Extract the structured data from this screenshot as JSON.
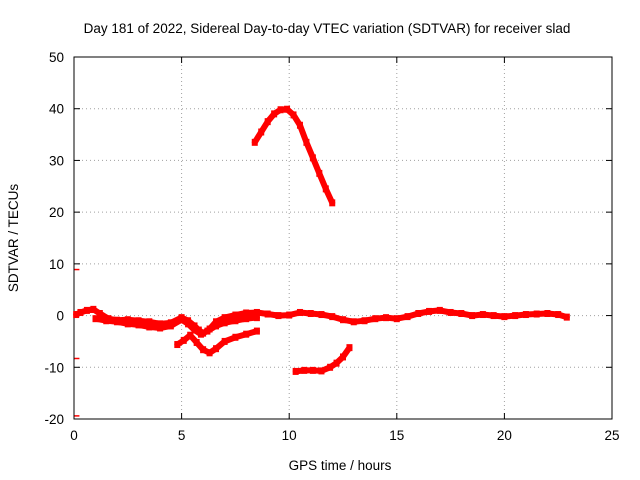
{
  "chart_data": {
    "type": "scatter",
    "title": "Day 181 of 2022, Sidereal Day-to-day VTEC variation (SDTVAR) for receiver slad",
    "xlabel": "GPS time / hours",
    "ylabel": "SDTVAR / TECUs",
    "xlim": [
      0,
      25
    ],
    "ylim": [
      -20,
      50
    ],
    "xticks": [
      0,
      5,
      10,
      15,
      20,
      25
    ],
    "yticks": [
      -20,
      -10,
      0,
      10,
      20,
      30,
      40,
      50
    ],
    "grid": true,
    "legend": "none",
    "series_color": "#ff0000",
    "series": [
      {
        "name": "main band",
        "x": [
          0.1,
          0.3,
          0.6,
          0.9,
          1.2,
          1.6,
          2.0,
          2.5,
          3.0,
          3.5,
          4.0,
          4.5,
          5.0,
          5.3,
          5.6,
          5.8,
          6.0,
          6.3,
          6.6,
          7.0,
          7.5,
          8.0,
          8.5,
          9.0,
          9.5,
          10.0,
          10.5,
          11.0,
          11.5,
          12.0,
          12.5,
          13.0,
          13.5,
          14.0,
          14.5,
          15.0,
          15.5,
          16.0,
          16.5,
          17.0,
          17.5,
          18.0,
          18.5,
          19.0,
          19.5,
          20.0,
          20.5,
          21.0,
          21.5,
          22.0,
          22.5,
          22.9
        ],
        "y": [
          0.2,
          0.6,
          1.0,
          1.2,
          0.4,
          -0.6,
          -0.9,
          -0.8,
          -1.0,
          -1.2,
          -1.6,
          -1.4,
          -0.4,
          -1.0,
          -2.0,
          -2.8,
          -3.4,
          -2.6,
          -1.2,
          -0.4,
          0.1,
          0.5,
          0.6,
          0.3,
          0.0,
          0.1,
          0.6,
          0.4,
          0.2,
          -0.2,
          -0.8,
          -1.2,
          -1.0,
          -0.6,
          -0.4,
          -0.6,
          -0.2,
          0.4,
          0.8,
          1.0,
          0.6,
          0.4,
          0.0,
          0.2,
          0.0,
          -0.2,
          0.0,
          0.2,
          0.3,
          0.4,
          0.2,
          -0.3
        ]
      },
      {
        "name": "lower band",
        "x": [
          1.0,
          1.5,
          2.0,
          2.5,
          3.0,
          3.5,
          4.0,
          4.5,
          5.0,
          5.3,
          5.6,
          5.9,
          6.2,
          6.6,
          7.0,
          7.5,
          8.0,
          8.5
        ],
        "y": [
          -0.6,
          -1.0,
          -1.2,
          -1.6,
          -1.8,
          -2.2,
          -2.4,
          -2.0,
          -0.8,
          -1.6,
          -2.8,
          -3.6,
          -3.0,
          -2.0,
          -1.4,
          -1.0,
          -0.6,
          -0.4
        ]
      },
      {
        "name": "dip segment",
        "x": [
          4.8,
          5.1,
          5.4,
          5.7,
          6.0,
          6.3,
          6.6,
          7.0,
          7.5,
          8.0,
          8.5
        ],
        "y": [
          -5.6,
          -4.8,
          -3.8,
          -5.2,
          -6.6,
          -7.2,
          -6.4,
          -5.0,
          -4.2,
          -3.6,
          -3.0
        ]
      },
      {
        "name": "arc",
        "x": [
          8.4,
          8.7,
          9.0,
          9.3,
          9.6,
          9.9,
          10.2,
          10.5,
          10.8,
          11.1,
          11.4,
          11.7,
          12.0
        ],
        "y": [
          33.5,
          35.5,
          37.5,
          39.0,
          39.8,
          39.9,
          38.8,
          36.8,
          33.5,
          30.5,
          27.5,
          24.5,
          21.8
        ]
      },
      {
        "name": "lower arc",
        "x": [
          10.3,
          10.7,
          11.1,
          11.5,
          11.9,
          12.2,
          12.5,
          12.8
        ],
        "y": [
          -10.8,
          -10.6,
          -10.6,
          -10.7,
          -10.0,
          -9.2,
          -8.0,
          -6.2
        ]
      },
      {
        "name": "edge ticks",
        "x": [
          0.02,
          0.02,
          0.02
        ],
        "y": [
          8.9,
          -8.3,
          -19.4
        ]
      }
    ]
  }
}
